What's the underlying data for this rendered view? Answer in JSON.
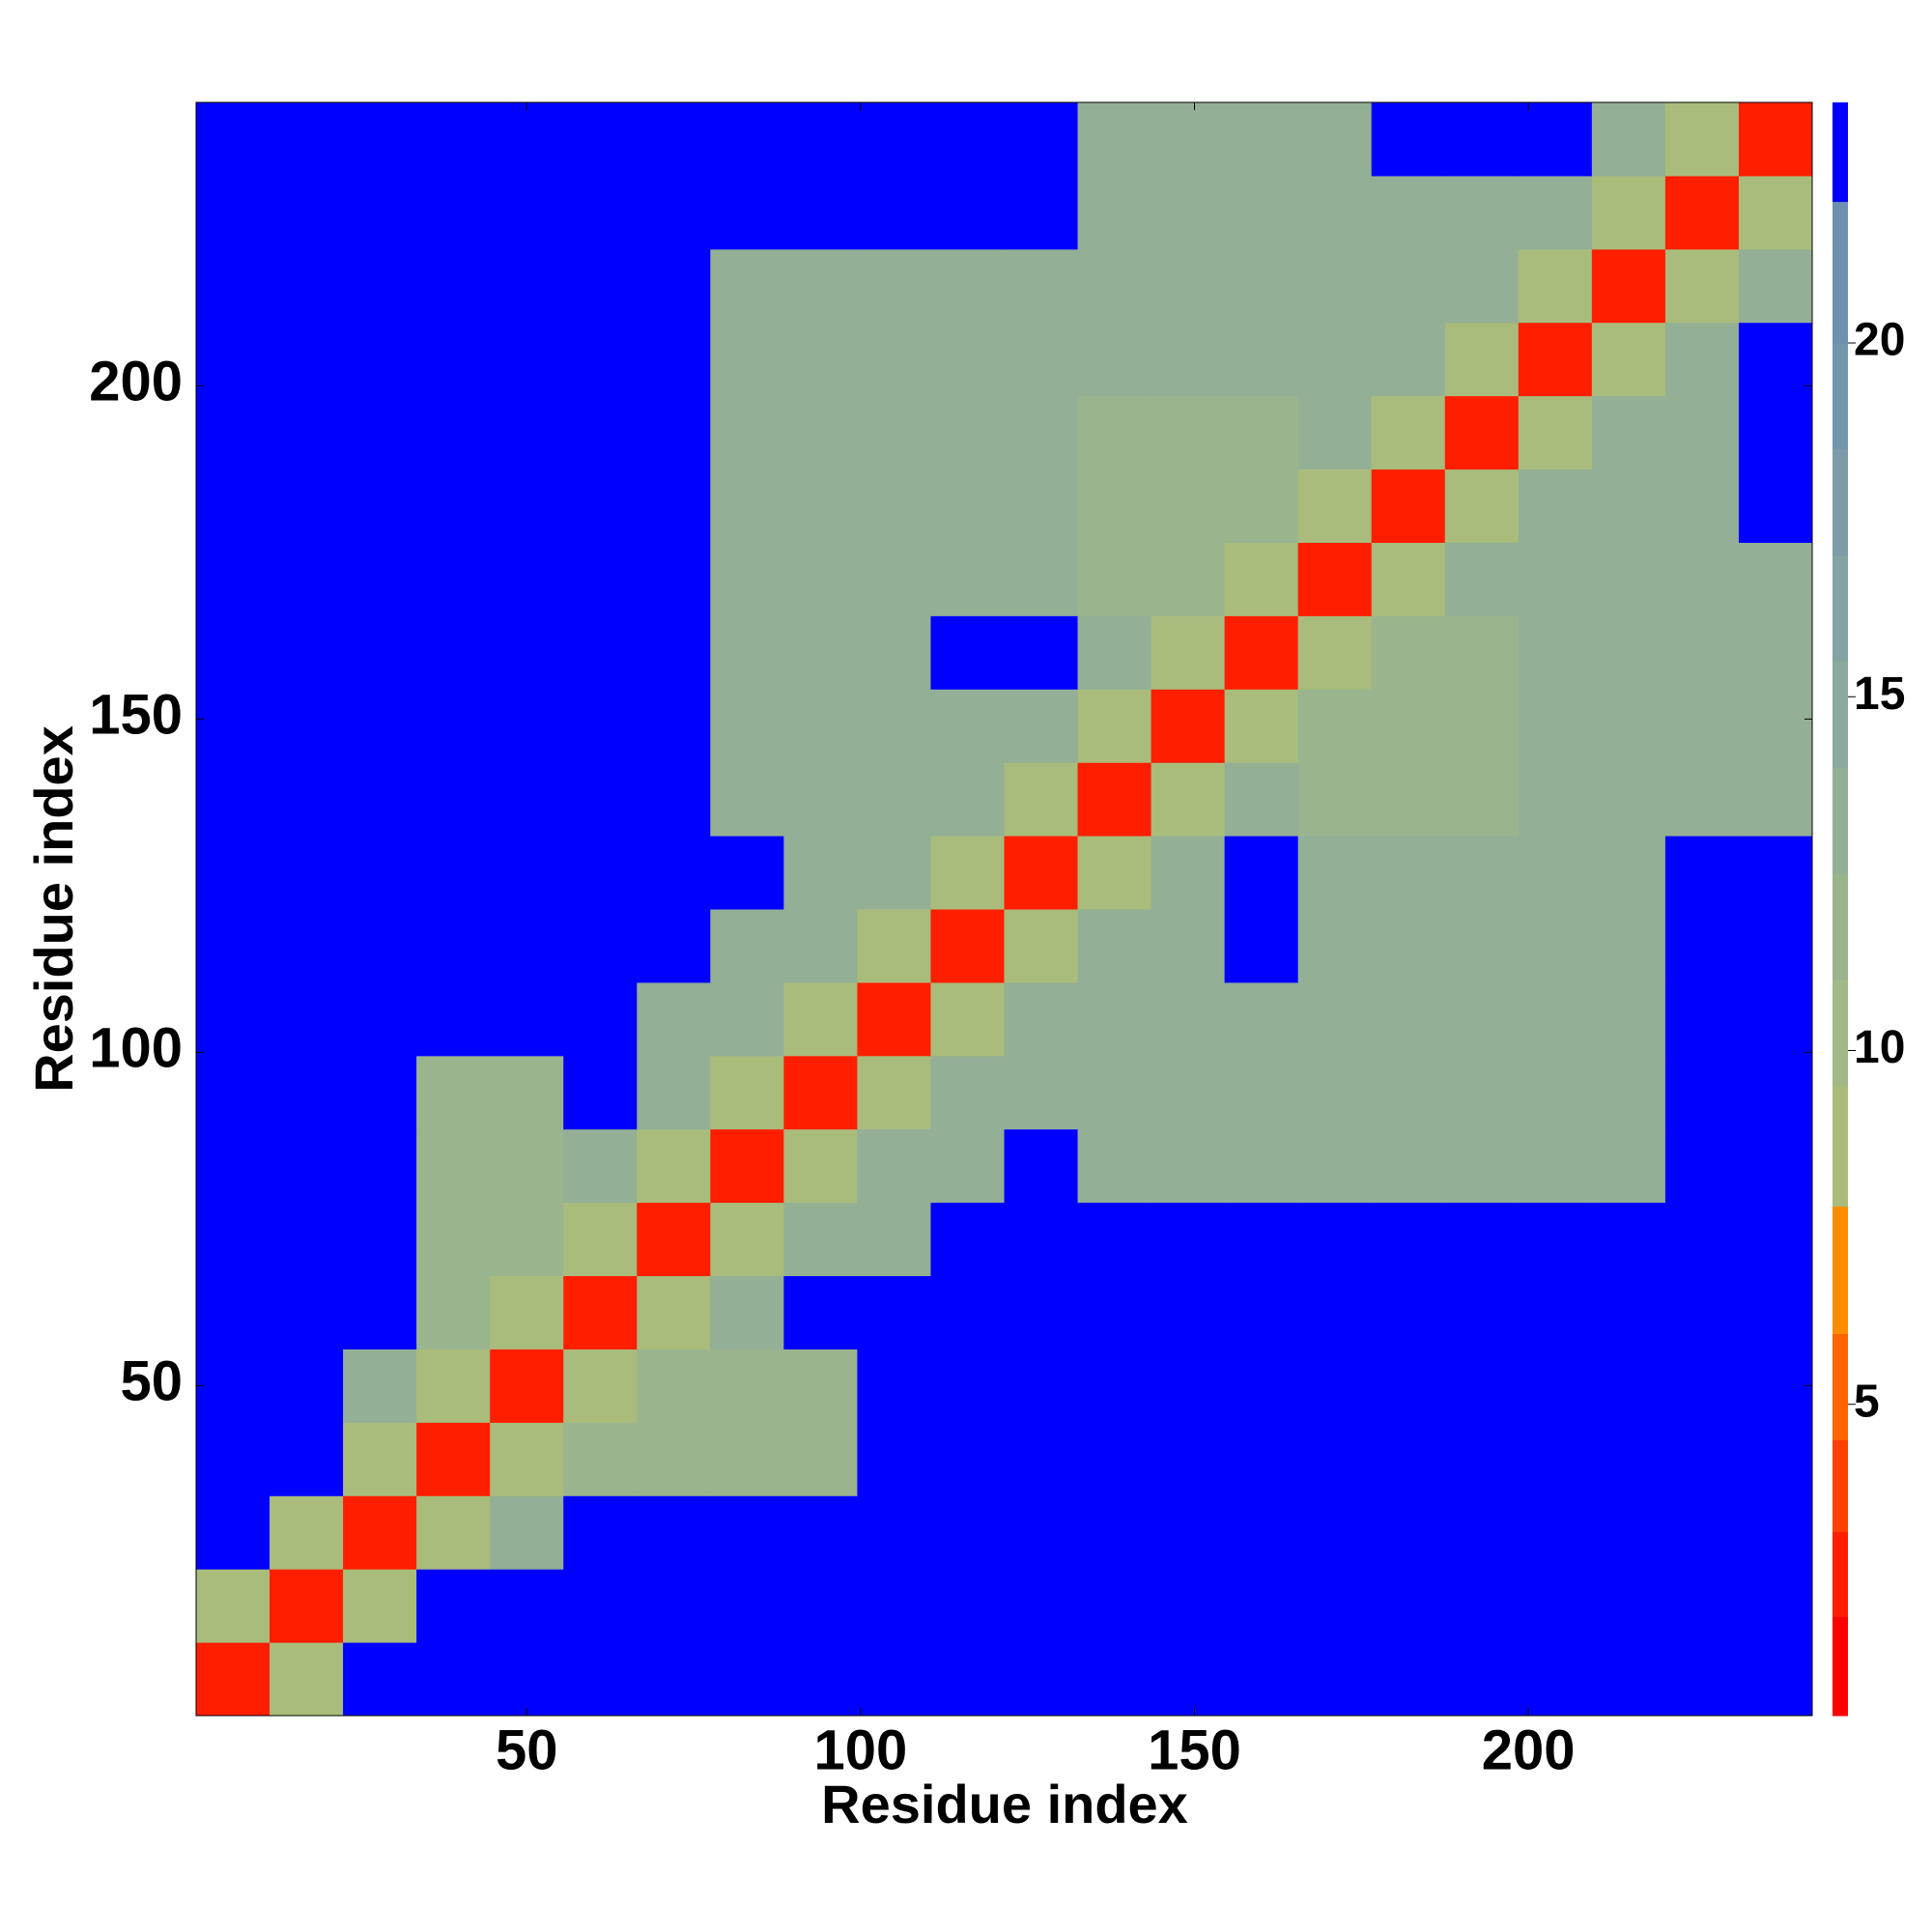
{
  "chart_data": {
    "type": "heatmap",
    "x_label": "Residue index",
    "y_label": "Residue index",
    "xlim": [
      0.5,
      242.5
    ],
    "ylim": [
      0.5,
      242.5
    ],
    "xticks": [
      50,
      100,
      150,
      200
    ],
    "yticks": [
      50,
      100,
      150,
      200
    ],
    "bins": [
      0.5,
      11.5,
      22.5,
      33.5,
      44.5,
      55.5,
      66.5,
      77.5,
      88.5,
      99.5,
      110.5,
      121.5,
      132.5,
      143.5,
      154.5,
      165.5,
      176.5,
      187.5,
      198.5,
      209.5,
      220.5,
      231.5,
      242.5
    ],
    "z": [
      [
        3,
        8,
        23,
        23,
        23,
        23,
        23,
        23,
        23,
        23,
        23,
        23,
        23,
        23,
        23,
        23,
        23,
        23,
        23,
        23,
        23,
        23
      ],
      [
        8,
        3,
        8,
        23,
        23,
        23,
        23,
        23,
        23,
        23,
        23,
        23,
        23,
        23,
        23,
        23,
        23,
        23,
        23,
        23,
        23,
        23
      ],
      [
        23,
        8,
        3,
        8,
        14,
        23,
        23,
        23,
        23,
        23,
        23,
        23,
        23,
        23,
        23,
        23,
        23,
        23,
        23,
        23,
        23,
        23
      ],
      [
        23,
        23,
        8,
        3,
        8,
        12,
        12,
        12,
        12,
        23,
        23,
        23,
        23,
        23,
        23,
        23,
        23,
        23,
        23,
        23,
        23,
        23
      ],
      [
        23,
        23,
        14,
        8,
        3,
        8,
        12,
        12,
        12,
        23,
        23,
        23,
        23,
        23,
        23,
        23,
        23,
        23,
        23,
        23,
        23,
        23
      ],
      [
        23,
        23,
        23,
        12,
        8,
        3,
        8,
        14,
        23,
        23,
        23,
        23,
        23,
        23,
        23,
        23,
        23,
        23,
        23,
        23,
        23,
        23
      ],
      [
        23,
        23,
        23,
        12,
        12,
        8,
        3,
        8,
        14,
        14,
        23,
        23,
        23,
        23,
        23,
        23,
        23,
        23,
        23,
        23,
        23,
        23
      ],
      [
        23,
        23,
        23,
        12,
        12,
        14,
        8,
        3,
        8,
        14,
        14,
        23,
        13,
        13,
        13,
        13,
        13,
        13,
        14,
        14,
        23,
        23
      ],
      [
        23,
        23,
        23,
        12,
        12,
        23,
        14,
        8,
        3,
        8,
        14,
        14,
        13,
        13,
        13,
        13,
        13,
        13,
        14,
        14,
        23,
        23
      ],
      [
        23,
        23,
        23,
        23,
        23,
        23,
        14,
        14,
        8,
        3,
        8,
        14,
        13,
        13,
        13,
        13,
        13,
        13,
        13,
        13,
        23,
        23
      ],
      [
        23,
        23,
        23,
        23,
        23,
        23,
        23,
        14,
        14,
        8,
        3,
        8,
        14,
        13,
        23,
        13,
        13,
        13,
        13,
        13,
        23,
        23
      ],
      [
        23,
        23,
        23,
        23,
        23,
        23,
        23,
        23,
        14,
        14,
        8,
        3,
        8,
        13,
        23,
        13,
        13,
        13,
        13,
        13,
        23,
        23
      ],
      [
        23,
        23,
        23,
        23,
        23,
        23,
        23,
        13,
        13,
        13,
        14,
        8,
        3,
        8,
        14,
        12,
        12,
        12,
        13,
        13,
        13,
        14
      ],
      [
        23,
        23,
        23,
        23,
        23,
        23,
        23,
        13,
        13,
        13,
        13,
        13,
        8,
        3,
        8,
        12,
        12,
        12,
        13,
        13,
        13,
        14
      ],
      [
        23,
        23,
        23,
        23,
        23,
        23,
        23,
        13,
        13,
        13,
        23,
        23,
        14,
        8,
        3,
        8,
        12,
        12,
        13,
        13,
        13,
        13
      ],
      [
        23,
        23,
        23,
        23,
        23,
        23,
        23,
        13,
        13,
        13,
        13,
        13,
        12,
        12,
        8,
        3,
        8,
        13,
        13,
        13,
        13,
        13
      ],
      [
        23,
        23,
        23,
        23,
        23,
        23,
        23,
        13,
        13,
        13,
        13,
        13,
        12,
        12,
        12,
        8,
        3,
        8,
        13,
        13,
        13,
        23
      ],
      [
        23,
        23,
        23,
        23,
        23,
        23,
        23,
        13,
        13,
        13,
        13,
        13,
        12,
        12,
        12,
        13,
        8,
        3,
        8,
        13,
        13,
        23
      ],
      [
        23,
        23,
        23,
        23,
        23,
        23,
        23,
        14,
        14,
        13,
        13,
        13,
        13,
        13,
        13,
        13,
        13,
        8,
        3,
        8,
        13,
        23
      ],
      [
        23,
        23,
        23,
        23,
        23,
        23,
        23,
        14,
        14,
        13,
        13,
        13,
        13,
        13,
        13,
        13,
        13,
        13,
        8,
        3,
        8,
        14
      ],
      [
        23,
        23,
        23,
        23,
        23,
        23,
        23,
        23,
        23,
        23,
        23,
        23,
        13,
        13,
        13,
        13,
        13,
        13,
        13,
        8,
        3,
        8
      ],
      [
        23,
        23,
        23,
        23,
        23,
        23,
        23,
        23,
        23,
        23,
        23,
        23,
        14,
        14,
        13,
        13,
        23,
        23,
        23,
        14,
        8,
        3
      ]
    ],
    "colorbar": {
      "lim": [
        0.6,
        23.4
      ],
      "ticks": [
        5,
        10,
        15,
        20
      ],
      "levels": [
        0.6,
        2,
        3.2,
        4.5,
        6,
        7.8,
        9.5,
        11,
        12.5,
        14,
        15.5,
        17,
        18.5,
        20,
        22,
        23.4
      ],
      "colors": [
        "#ff0000",
        "#ff1e00",
        "#ff4000",
        "#ff6400",
        "#ff8c00",
        "#a9bc7c",
        "#a2b886",
        "#9ab48e",
        "#93af96",
        "#8ba99d",
        "#84a3a3",
        "#7c9ca8",
        "#7496ad",
        "#6e90b0",
        "#0000ff"
      ]
    }
  }
}
